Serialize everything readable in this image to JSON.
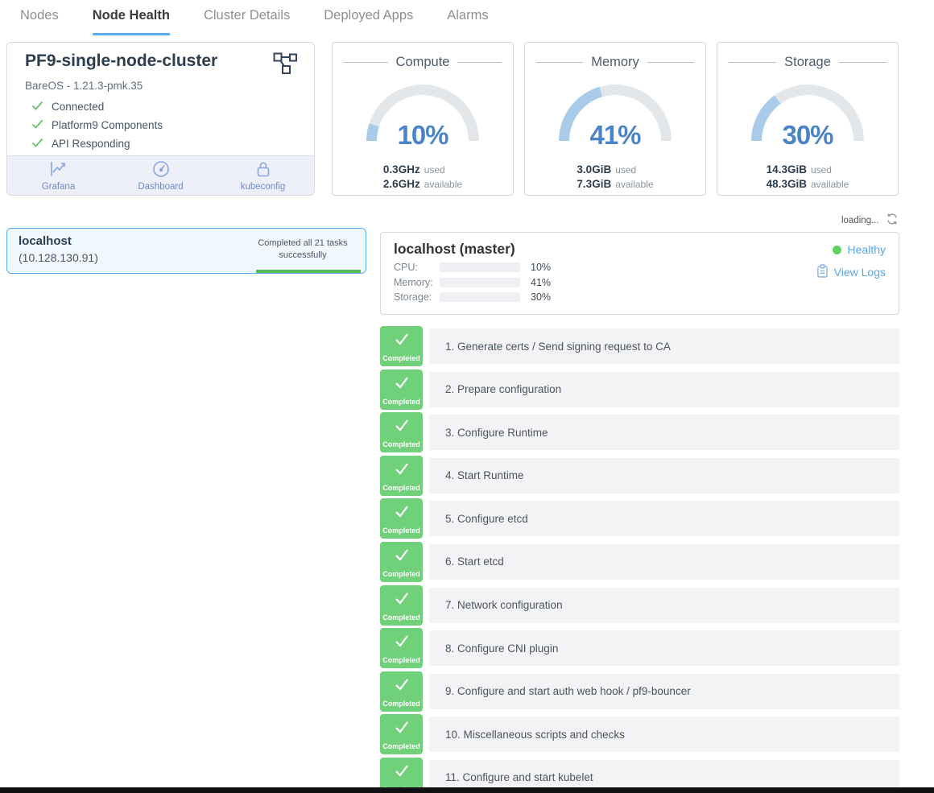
{
  "tabs": [
    {
      "label": "Nodes",
      "active": false
    },
    {
      "label": "Node Health",
      "active": true
    },
    {
      "label": "Cluster Details",
      "active": false
    },
    {
      "label": "Deployed Apps",
      "active": false
    },
    {
      "label": "Alarms",
      "active": false
    }
  ],
  "cluster": {
    "title": "PF9-single-node-cluster",
    "subtitle": "BareOS - 1.21.3-pmk.35",
    "checks": [
      {
        "label": "Connected"
      },
      {
        "label": "Platform9 Components"
      },
      {
        "label": "API Responding"
      }
    ],
    "actions": [
      {
        "label": "Grafana",
        "icon": "grafana-chart-icon"
      },
      {
        "label": "Dashboard",
        "icon": "dashboard-gauge-icon"
      },
      {
        "label": "kubeconfig",
        "icon": "lock-icon"
      }
    ]
  },
  "gauges": [
    {
      "title": "Compute",
      "percent": 10,
      "percent_text": "10%",
      "used_value": "0.3GHz",
      "used_label": "used",
      "available_value": "2.6GHz",
      "available_label": "available"
    },
    {
      "title": "Memory",
      "percent": 41,
      "percent_text": "41%",
      "used_value": "3.0GiB",
      "used_label": "used",
      "available_value": "7.3GiB",
      "available_label": "available"
    },
    {
      "title": "Storage",
      "percent": 30,
      "percent_text": "30%",
      "used_value": "14.3GiB",
      "used_label": "used",
      "available_value": "48.3GiB",
      "available_label": "available"
    }
  ],
  "status_bar": {
    "loading_text": "loading..."
  },
  "node_list": [
    {
      "name": "localhost",
      "ip": "(10.128.130.91)",
      "status": "Completed all 21 tasks successfully",
      "progress_percent": 100
    }
  ],
  "node_detail": {
    "title": "localhost (master)",
    "health_label": "Healthy",
    "view_logs_label": "View Logs",
    "metrics": [
      {
        "label": "CPU:",
        "percent": 10,
        "percent_text": "10%"
      },
      {
        "label": "Memory:",
        "percent": 41,
        "percent_text": "41%"
      },
      {
        "label": "Storage:",
        "percent": 30,
        "percent_text": "30%"
      }
    ]
  },
  "tasks": [
    {
      "status": "Completed",
      "label": "1. Generate certs / Send signing request to CA"
    },
    {
      "status": "Completed",
      "label": "2. Prepare configuration"
    },
    {
      "status": "Completed",
      "label": "3. Configure Runtime"
    },
    {
      "status": "Completed",
      "label": "4. Start Runtime"
    },
    {
      "status": "Completed",
      "label": "5. Configure etcd"
    },
    {
      "status": "Completed",
      "label": "6. Start etcd"
    },
    {
      "status": "Completed",
      "label": "7. Network configuration"
    },
    {
      "status": "Completed",
      "label": "8. Configure CNI plugin"
    },
    {
      "status": "Completed",
      "label": "9. Configure and start auth web hook / pf9-bouncer"
    },
    {
      "status": "Completed",
      "label": "10. Miscellaneous scripts and checks"
    },
    {
      "status": "Completed",
      "label": "11. Configure and start kubelet"
    }
  ],
  "colors": {
    "accent_blue": "#57a6e8",
    "tab_underline": "#58aef2",
    "success_green": "#70d17a",
    "gauge_fill": "#a9cbe9",
    "gauge_track": "#e4e7ea",
    "gauge_percent_text": "#4a84c6",
    "healthy_dot": "#62d162"
  }
}
